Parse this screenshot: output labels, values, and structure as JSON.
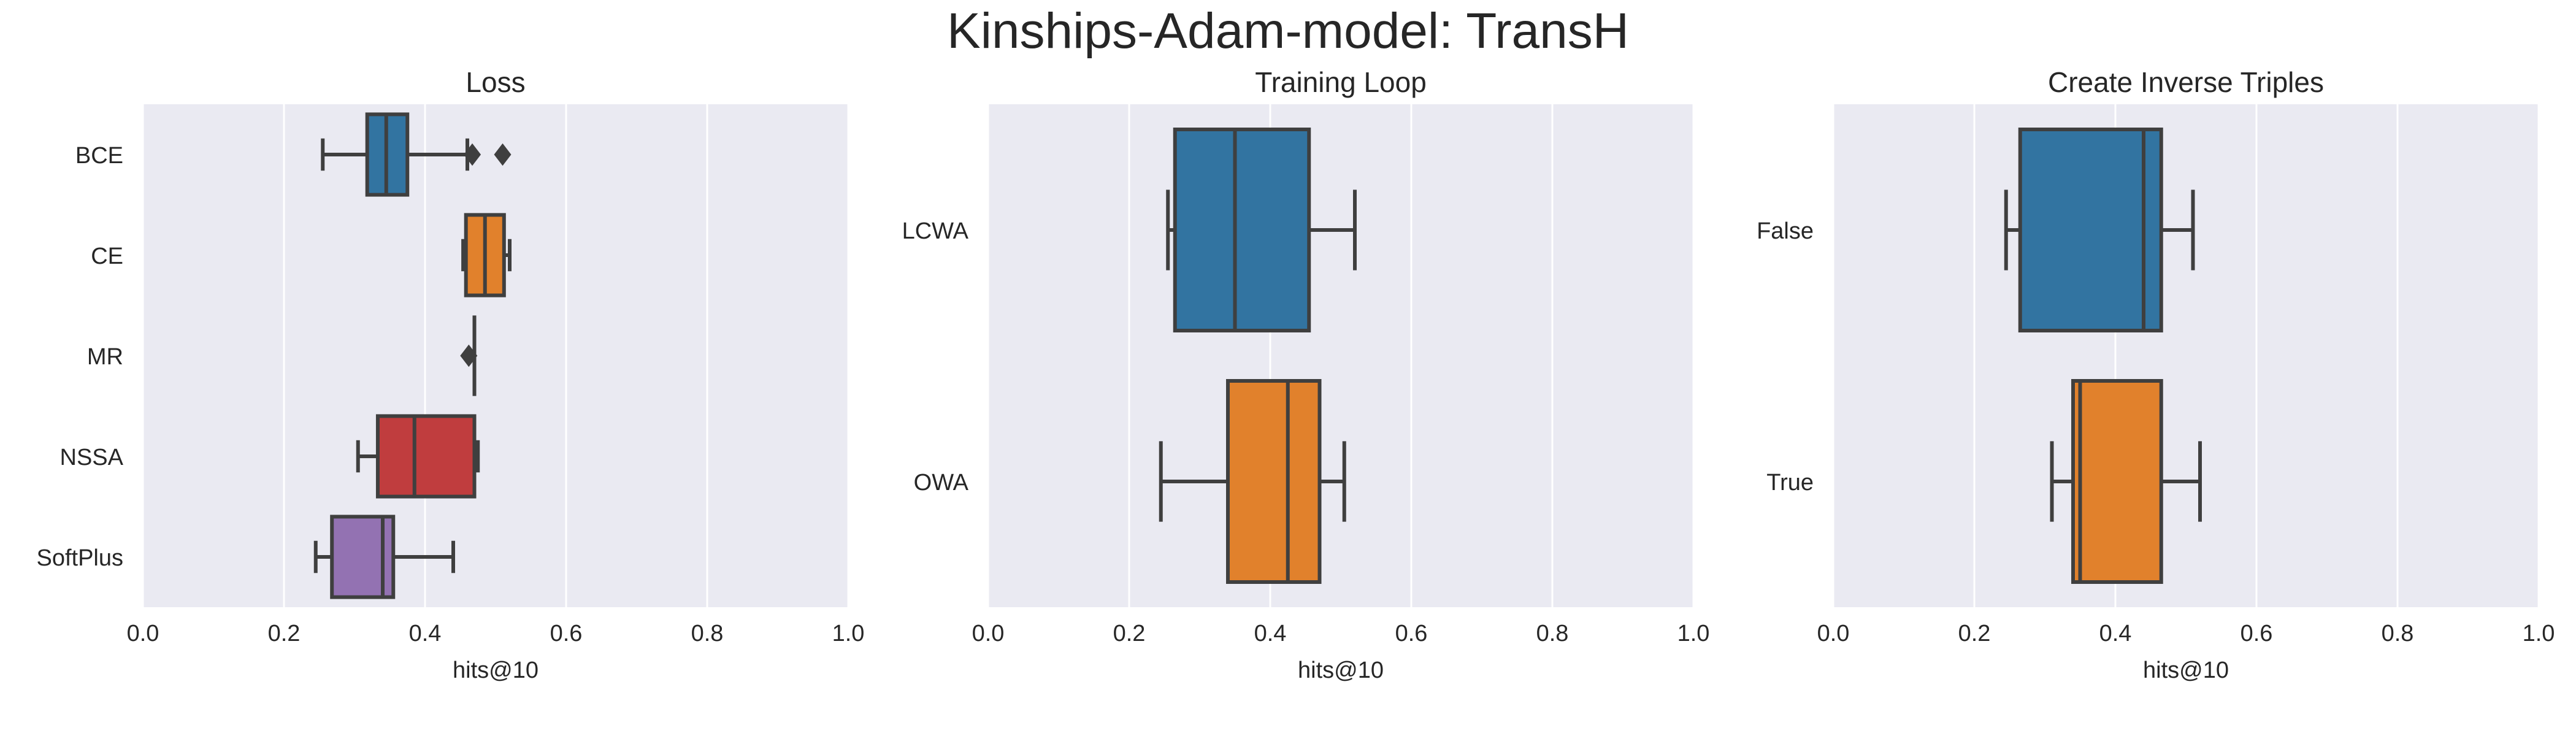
{
  "figure_title": "Kinships-Adam-model: TransH",
  "chart_data": [
    {
      "type": "boxplot",
      "orientation": "horizontal",
      "title": "Loss",
      "xlabel": "hits@10",
      "ylabel": "",
      "xlim": [
        0.0,
        1.0
      ],
      "xticks": [
        "0.0",
        "0.2",
        "0.4",
        "0.6",
        "0.8",
        "1.0"
      ],
      "grid": true,
      "categories": [
        "BCE",
        "CE",
        "MR",
        "NSSA",
        "SoftPlus"
      ],
      "colors": [
        "#3274a1",
        "#e1812c",
        "#3a923a",
        "#c03d3e",
        "#9372b2"
      ],
      "boxes": [
        {
          "whisker_low": 0.255,
          "q1": 0.318,
          "median": 0.345,
          "q3": 0.375,
          "whisker_high": 0.46,
          "outliers": [
            0.467,
            0.51
          ]
        },
        {
          "whisker_low": 0.454,
          "q1": 0.458,
          "median": 0.485,
          "q3": 0.512,
          "whisker_high": 0.52,
          "outliers": []
        },
        {
          "whisker_low": 0.47,
          "q1": 0.47,
          "median": 0.47,
          "q3": 0.47,
          "whisker_high": 0.47,
          "outliers": [
            0.462
          ]
        },
        {
          "whisker_low": 0.305,
          "q1": 0.333,
          "median": 0.385,
          "q3": 0.47,
          "whisker_high": 0.475,
          "outliers": []
        },
        {
          "whisker_low": 0.245,
          "q1": 0.268,
          "median": 0.34,
          "q3": 0.355,
          "whisker_high": 0.44,
          "outliers": []
        }
      ]
    },
    {
      "type": "boxplot",
      "orientation": "horizontal",
      "title": "Training Loop",
      "xlabel": "hits@10",
      "ylabel": "",
      "xlim": [
        0.0,
        1.0
      ],
      "xticks": [
        "0.0",
        "0.2",
        "0.4",
        "0.6",
        "0.8",
        "1.0"
      ],
      "grid": true,
      "categories": [
        "LCWA",
        "OWA"
      ],
      "colors": [
        "#3274a1",
        "#e1812c"
      ],
      "boxes": [
        {
          "whisker_low": 0.255,
          "q1": 0.265,
          "median": 0.35,
          "q3": 0.455,
          "whisker_high": 0.52,
          "outliers": []
        },
        {
          "whisker_low": 0.245,
          "q1": 0.34,
          "median": 0.425,
          "q3": 0.47,
          "whisker_high": 0.505,
          "outliers": []
        }
      ]
    },
    {
      "type": "boxplot",
      "orientation": "horizontal",
      "title": "Create Inverse Triples",
      "xlabel": "hits@10",
      "ylabel": "",
      "xlim": [
        0.0,
        1.0
      ],
      "xticks": [
        "0.0",
        "0.2",
        "0.4",
        "0.6",
        "0.8",
        "1.0"
      ],
      "grid": true,
      "categories": [
        "False",
        "True"
      ],
      "colors": [
        "#3274a1",
        "#e1812c"
      ],
      "boxes": [
        {
          "whisker_low": 0.245,
          "q1": 0.265,
          "median": 0.44,
          "q3": 0.465,
          "whisker_high": 0.51,
          "outliers": []
        },
        {
          "whisker_low": 0.31,
          "q1": 0.34,
          "median": 0.35,
          "q3": 0.465,
          "whisker_high": 0.52,
          "outliers": []
        }
      ]
    }
  ]
}
